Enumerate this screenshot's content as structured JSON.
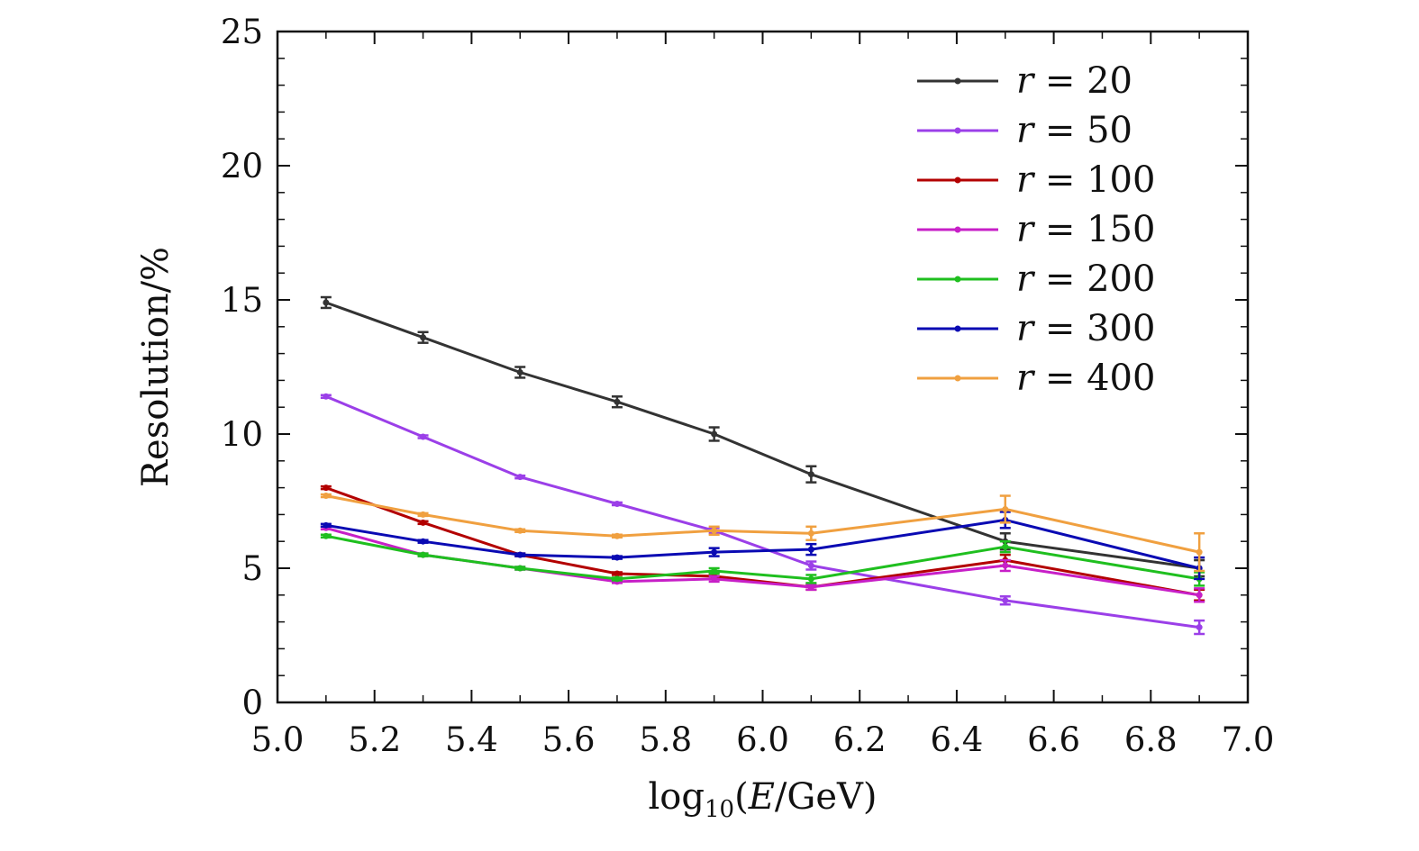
{
  "chart_data": {
    "type": "line",
    "title": "",
    "xlabel": "log10(E/GeV)",
    "xlabel_parts": {
      "fn": "log",
      "sub": "10",
      "open": "(",
      "var": "E",
      "rest": "/GeV)"
    },
    "ylabel": "Resolution/%",
    "xlim": [
      5.0,
      7.0
    ],
    "ylim": [
      0,
      25
    ],
    "xticks": [
      "5.0",
      "5.2",
      "5.4",
      "5.6",
      "5.8",
      "6.0",
      "6.2",
      "6.4",
      "6.6",
      "6.8",
      "7.0"
    ],
    "yticks": [
      "0",
      "5",
      "10",
      "15",
      "20",
      "25"
    ],
    "grid": false,
    "legend_position": "top-right",
    "x": [
      5.1,
      5.3,
      5.5,
      5.7,
      5.9,
      6.1,
      6.5,
      6.9
    ],
    "series": [
      {
        "name": "r = 20",
        "var": "r",
        "eq": "= 20",
        "color": "#333333",
        "values": [
          14.9,
          13.6,
          12.3,
          11.2,
          10.0,
          8.5,
          6.0,
          5.0
        ],
        "errors": [
          0.2,
          0.2,
          0.2,
          0.2,
          0.25,
          0.3,
          0.3,
          0.3
        ]
      },
      {
        "name": "r = 50",
        "var": "r",
        "eq": "= 50",
        "color": "#9b3fe8",
        "values": [
          11.4,
          9.9,
          8.4,
          7.4,
          6.4,
          5.1,
          3.8,
          2.8
        ],
        "errors": [
          0.05,
          0.05,
          0.05,
          0.05,
          0.1,
          0.15,
          0.15,
          0.25
        ]
      },
      {
        "name": "r = 100",
        "var": "r",
        "eq": "= 100",
        "color": "#b30000",
        "values": [
          8.0,
          6.7,
          5.5,
          4.8,
          4.7,
          4.3,
          5.3,
          4.0
        ],
        "errors": [
          0.05,
          0.05,
          0.05,
          0.05,
          0.1,
          0.1,
          0.2,
          0.2
        ]
      },
      {
        "name": "r = 150",
        "var": "r",
        "eq": "= 150",
        "color": "#c71fc7",
        "values": [
          6.5,
          5.5,
          5.0,
          4.5,
          4.6,
          4.3,
          5.1,
          4.0
        ],
        "errors": [
          0.05,
          0.05,
          0.05,
          0.05,
          0.1,
          0.1,
          0.2,
          0.25
        ]
      },
      {
        "name": "r = 200",
        "var": "r",
        "eq": "= 200",
        "color": "#1fbf1f",
        "values": [
          6.2,
          5.5,
          5.0,
          4.6,
          4.9,
          4.6,
          5.8,
          4.6
        ],
        "errors": [
          0.05,
          0.05,
          0.05,
          0.05,
          0.1,
          0.15,
          0.2,
          0.25
        ]
      },
      {
        "name": "r = 300",
        "var": "r",
        "eq": "= 300",
        "color": "#0a0ab3",
        "values": [
          6.6,
          6.0,
          5.5,
          5.4,
          5.6,
          5.7,
          6.8,
          5.0
        ],
        "errors": [
          0.05,
          0.05,
          0.05,
          0.05,
          0.15,
          0.2,
          0.3,
          0.4
        ]
      },
      {
        "name": "r = 400",
        "var": "r",
        "eq": "= 400",
        "color": "#f0a040",
        "values": [
          7.7,
          7.0,
          6.4,
          6.2,
          6.4,
          6.3,
          7.2,
          5.6
        ],
        "errors": [
          0.05,
          0.05,
          0.05,
          0.05,
          0.15,
          0.25,
          0.5,
          0.7
        ]
      }
    ]
  }
}
